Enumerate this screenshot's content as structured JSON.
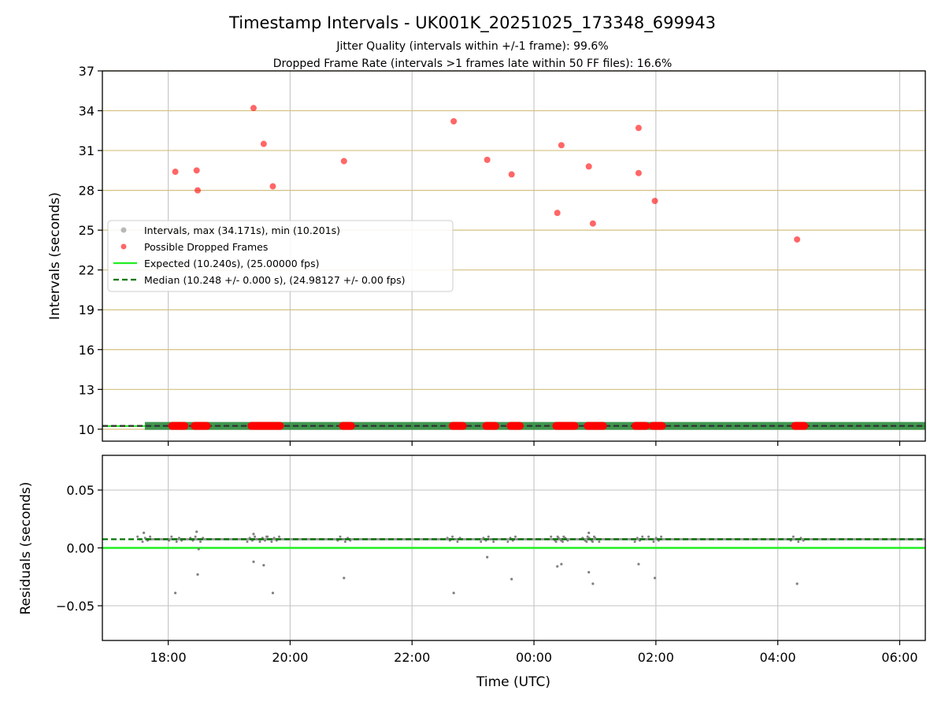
{
  "chart_data": {
    "title": "Timestamp Intervals - UK001K_20251025_173348_699943",
    "subtitles": [
      "Jitter Quality (intervals within +/-1 frame): 99.6%",
      "Dropped Frame Rate (intervals >1 frames late within 50 FF files): 16.6%"
    ],
    "xlabel": "Time (UTC)",
    "x_ticks": [
      "18:00",
      "20:00",
      "22:00",
      "00:00",
      "02:00",
      "04:00",
      "06:00"
    ],
    "x_range_hours_since_1700": [
      -0.08,
      13.42
    ],
    "grid": true,
    "top_panel": {
      "type": "scatter",
      "ylabel": "Intervals (seconds)",
      "ylim": [
        9.1,
        37
      ],
      "y_ticks": [
        10,
        13,
        16,
        19,
        22,
        25,
        28,
        31,
        34,
        37
      ],
      "legend_position": "center-left",
      "legend": [
        "Intervals, max (34.171s), min (10.201s)",
        "Possible Dropped Frames",
        "Expected (10.240s), (25.00000 fps)",
        "Median (10.248 +/- 0.000 s), (24.98127 +/- 0.00 fps)"
      ],
      "expected_interval": 10.24,
      "median_interval": 10.248,
      "intervals_band_x_range": [
        "17:37",
        "06:25"
      ],
      "dropped_frames_high": [
        {
          "x": "18:07",
          "y": 29.4
        },
        {
          "x": "18:28",
          "y": 29.5
        },
        {
          "x": "18:29",
          "y": 28.0
        },
        {
          "x": "19:24",
          "y": 34.2
        },
        {
          "x": "19:34",
          "y": 31.5
        },
        {
          "x": "19:43",
          "y": 28.3
        },
        {
          "x": "20:53",
          "y": 30.2
        },
        {
          "x": "22:41",
          "y": 33.2
        },
        {
          "x": "23:14",
          "y": 30.3
        },
        {
          "x": "23:38",
          "y": 29.2
        },
        {
          "x": "00:23",
          "y": 26.3
        },
        {
          "x": "00:27",
          "y": 31.4
        },
        {
          "x": "00:54",
          "y": 29.8
        },
        {
          "x": "00:58",
          "y": 25.5
        },
        {
          "x": "01:43",
          "y": 32.7
        },
        {
          "x": "01:43",
          "y": 29.3
        },
        {
          "x": "01:59",
          "y": 27.2
        },
        {
          "x": "04:19",
          "y": 24.3
        }
      ],
      "dropped_frames_low_clusters": [
        {
          "x_start": "18:04",
          "x_end": "18:16"
        },
        {
          "x_start": "18:26",
          "x_end": "18:38"
        },
        {
          "x_start": "19:22",
          "x_end": "19:50"
        },
        {
          "x_start": "20:52",
          "x_end": "21:00"
        },
        {
          "x_start": "22:40",
          "x_end": "22:50"
        },
        {
          "x_start": "23:13",
          "x_end": "23:22"
        },
        {
          "x_start": "23:37",
          "x_end": "23:46"
        },
        {
          "x_start": "00:22",
          "x_end": "00:40"
        },
        {
          "x_start": "00:53",
          "x_end": "01:08"
        },
        {
          "x_start": "01:40",
          "x_end": "01:50"
        },
        {
          "x_start": "01:57",
          "x_end": "02:06"
        },
        {
          "x_start": "04:17",
          "x_end": "04:26"
        }
      ]
    },
    "bottom_panel": {
      "type": "scatter",
      "ylabel": "Residuals (seconds)",
      "ylim": [
        -0.08,
        0.08
      ],
      "y_ticks": [
        0.05,
        0.0,
        -0.05
      ],
      "y_tick_labels": [
        "0.05",
        "0.00",
        "−0.05"
      ],
      "expected_residual": 0.0,
      "median_residual": 0.0075,
      "outliers": [
        {
          "x": "17:36",
          "y": 0.013
        },
        {
          "x": "18:07",
          "y": -0.039
        },
        {
          "x": "18:28",
          "y": 0.014
        },
        {
          "x": "18:29",
          "y": -0.023
        },
        {
          "x": "18:30",
          "y": -0.001
        },
        {
          "x": "19:24",
          "y": 0.012
        },
        {
          "x": "19:24",
          "y": -0.012
        },
        {
          "x": "19:34",
          "y": -0.015
        },
        {
          "x": "19:43",
          "y": -0.039
        },
        {
          "x": "20:53",
          "y": -0.026
        },
        {
          "x": "22:41",
          "y": -0.039
        },
        {
          "x": "23:14",
          "y": -0.008
        },
        {
          "x": "23:38",
          "y": -0.027
        },
        {
          "x": "00:23",
          "y": -0.016
        },
        {
          "x": "00:27",
          "y": -0.014
        },
        {
          "x": "00:54",
          "y": 0.013
        },
        {
          "x": "00:54",
          "y": -0.021
        },
        {
          "x": "00:58",
          "y": -0.031
        },
        {
          "x": "01:43",
          "y": -0.014
        },
        {
          "x": "01:59",
          "y": -0.026
        },
        {
          "x": "04:19",
          "y": -0.031
        }
      ],
      "near_median_clusters": [
        "17:36",
        "18:07",
        "18:28",
        "19:24",
        "19:34",
        "19:43",
        "20:53",
        "22:41",
        "23:14",
        "23:38",
        "00:23",
        "00:27",
        "00:54",
        "00:58",
        "01:43",
        "01:59",
        "04:19"
      ]
    },
    "colors": {
      "intervals": "#808080",
      "dropped": "#ff0000",
      "expected": "#22ee22",
      "median": "#007700",
      "band": "#2e8b3e",
      "top_grid": "#d4c080",
      "grid": "#c8c8c8"
    }
  }
}
